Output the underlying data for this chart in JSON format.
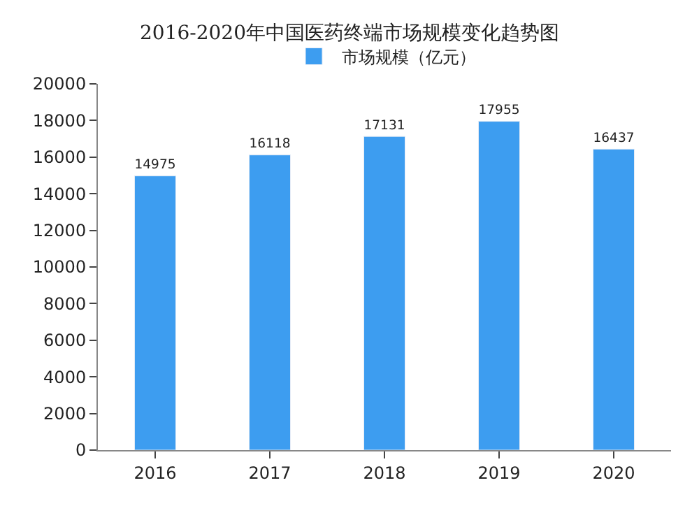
{
  "chart_data": {
    "type": "bar",
    "title": "2016-2020年中国医药终端市场规模变化趋势图",
    "categories": [
      "2016",
      "2017",
      "2018",
      "2019",
      "2020"
    ],
    "series": [
      {
        "name": "市场规模（亿元）",
        "color": "#3d9df0",
        "values": [
          14975,
          16118,
          17131,
          17955,
          16437
        ]
      }
    ],
    "ylim": [
      0,
      20000
    ],
    "yticks": [
      0,
      2000,
      4000,
      6000,
      8000,
      10000,
      12000,
      14000,
      16000,
      18000,
      20000
    ],
    "data_labels": true,
    "legend": "top"
  }
}
